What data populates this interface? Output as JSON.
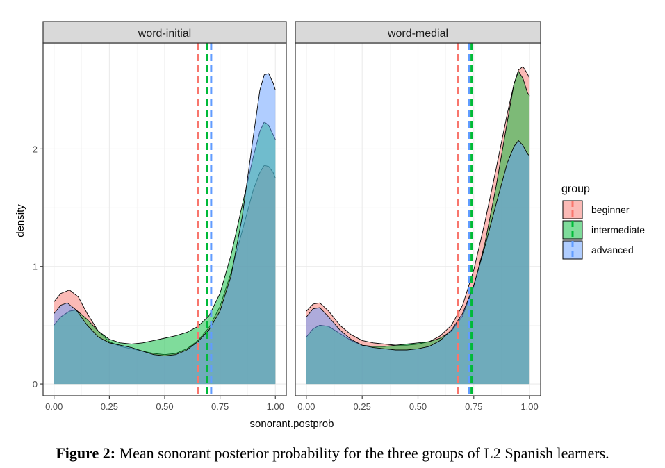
{
  "chart_data": {
    "type": "area",
    "x_axis_label": "sonorant.postprob",
    "y_axis_label": "density",
    "xlim": [
      0,
      1
    ],
    "ylim": [
      -0.1,
      2.9
    ],
    "x_ticks": [
      0.0,
      0.25,
      0.5,
      0.75,
      1.0
    ],
    "x_tick_labels": [
      "0.00",
      "0.25",
      "0.50",
      "0.75",
      "1.00"
    ],
    "y_ticks": [
      0,
      1,
      2
    ],
    "y_tick_labels": [
      "0",
      "1",
      "2"
    ],
    "legend": {
      "title": "group",
      "position": "right",
      "entries": [
        {
          "label": "beginner",
          "fill": "#F8766D",
          "line": "#F8766D"
        },
        {
          "label": "intermediate",
          "fill": "#00BA38",
          "line": "#00BA38"
        },
        {
          "label": "advanced",
          "fill": "#619CFF",
          "line": "#619CFF"
        }
      ]
    },
    "grid": true,
    "panels": [
      {
        "title": "word-initial",
        "means": {
          "beginner": 0.65,
          "intermediate": 0.69,
          "advanced": 0.71
        },
        "series": [
          {
            "name": "beginner",
            "x": [
              0.0,
              0.03,
              0.07,
              0.11,
              0.15,
              0.2,
              0.25,
              0.3,
              0.35,
              0.4,
              0.45,
              0.5,
              0.55,
              0.6,
              0.65,
              0.7,
              0.75,
              0.8,
              0.85,
              0.9,
              0.93,
              0.95,
              0.97,
              0.99,
              1.0
            ],
            "y": [
              0.7,
              0.77,
              0.8,
              0.74,
              0.6,
              0.45,
              0.36,
              0.32,
              0.3,
              0.28,
              0.26,
              0.25,
              0.26,
              0.3,
              0.37,
              0.48,
              0.66,
              0.95,
              1.3,
              1.65,
              1.8,
              1.86,
              1.85,
              1.8,
              1.75
            ]
          },
          {
            "name": "intermediate",
            "x": [
              0.0,
              0.03,
              0.07,
              0.1,
              0.15,
              0.2,
              0.25,
              0.3,
              0.35,
              0.4,
              0.45,
              0.5,
              0.55,
              0.6,
              0.65,
              0.7,
              0.75,
              0.8,
              0.85,
              0.9,
              0.93,
              0.95,
              0.97,
              0.99,
              1.0
            ],
            "y": [
              0.5,
              0.57,
              0.62,
              0.63,
              0.55,
              0.45,
              0.38,
              0.35,
              0.34,
              0.35,
              0.37,
              0.39,
              0.41,
              0.44,
              0.49,
              0.58,
              0.77,
              1.1,
              1.52,
              1.93,
              2.15,
              2.23,
              2.2,
              2.12,
              2.08
            ]
          },
          {
            "name": "advanced",
            "x": [
              0.0,
              0.03,
              0.06,
              0.1,
              0.15,
              0.2,
              0.25,
              0.3,
              0.35,
              0.4,
              0.45,
              0.5,
              0.55,
              0.6,
              0.65,
              0.7,
              0.75,
              0.8,
              0.85,
              0.9,
              0.93,
              0.95,
              0.97,
              0.99,
              1.0
            ],
            "y": [
              0.6,
              0.67,
              0.69,
              0.63,
              0.5,
              0.4,
              0.35,
              0.33,
              0.31,
              0.28,
              0.25,
              0.24,
              0.25,
              0.29,
              0.36,
              0.46,
              0.62,
              0.92,
              1.42,
              2.1,
              2.5,
              2.63,
              2.64,
              2.56,
              2.5
            ]
          }
        ]
      },
      {
        "title": "word-medial",
        "means": {
          "beginner": 0.68,
          "intermediate": 0.74,
          "advanced": 0.73
        },
        "series": [
          {
            "name": "beginner",
            "x": [
              0.0,
              0.03,
              0.06,
              0.1,
              0.15,
              0.2,
              0.25,
              0.3,
              0.35,
              0.4,
              0.45,
              0.5,
              0.55,
              0.6,
              0.65,
              0.7,
              0.75,
              0.8,
              0.85,
              0.9,
              0.93,
              0.95,
              0.97,
              0.99,
              1.0
            ],
            "y": [
              0.62,
              0.68,
              0.69,
              0.62,
              0.5,
              0.42,
              0.37,
              0.35,
              0.34,
              0.33,
              0.33,
              0.34,
              0.36,
              0.41,
              0.5,
              0.67,
              0.97,
              1.38,
              1.83,
              2.3,
              2.55,
              2.67,
              2.7,
              2.64,
              2.6
            ]
          },
          {
            "name": "intermediate",
            "x": [
              0.0,
              0.03,
              0.06,
              0.1,
              0.15,
              0.2,
              0.25,
              0.3,
              0.35,
              0.4,
              0.45,
              0.5,
              0.55,
              0.6,
              0.65,
              0.7,
              0.75,
              0.8,
              0.85,
              0.9,
              0.93,
              0.95,
              0.97,
              0.99,
              1.0
            ],
            "y": [
              0.4,
              0.47,
              0.5,
              0.49,
              0.43,
              0.37,
              0.33,
              0.32,
              0.32,
              0.33,
              0.34,
              0.35,
              0.36,
              0.39,
              0.45,
              0.58,
              0.83,
              1.2,
              1.68,
              2.23,
              2.55,
              2.66,
              2.6,
              2.48,
              2.45
            ]
          },
          {
            "name": "advanced",
            "x": [
              0.0,
              0.03,
              0.06,
              0.1,
              0.15,
              0.2,
              0.25,
              0.3,
              0.35,
              0.4,
              0.45,
              0.5,
              0.55,
              0.6,
              0.65,
              0.7,
              0.75,
              0.8,
              0.85,
              0.9,
              0.93,
              0.95,
              0.97,
              0.99,
              1.0
            ],
            "y": [
              0.57,
              0.64,
              0.65,
              0.57,
              0.46,
              0.38,
              0.33,
              0.31,
              0.3,
              0.29,
              0.29,
              0.3,
              0.32,
              0.37,
              0.46,
              0.6,
              0.84,
              1.17,
              1.53,
              1.88,
              2.02,
              2.07,
              2.03,
              1.96,
              1.94
            ]
          }
        ]
      }
    ]
  },
  "caption": {
    "label": "Figure 2:",
    "text": " Mean sonorant posterior probability for the three groups of L2 Spanish learners."
  }
}
